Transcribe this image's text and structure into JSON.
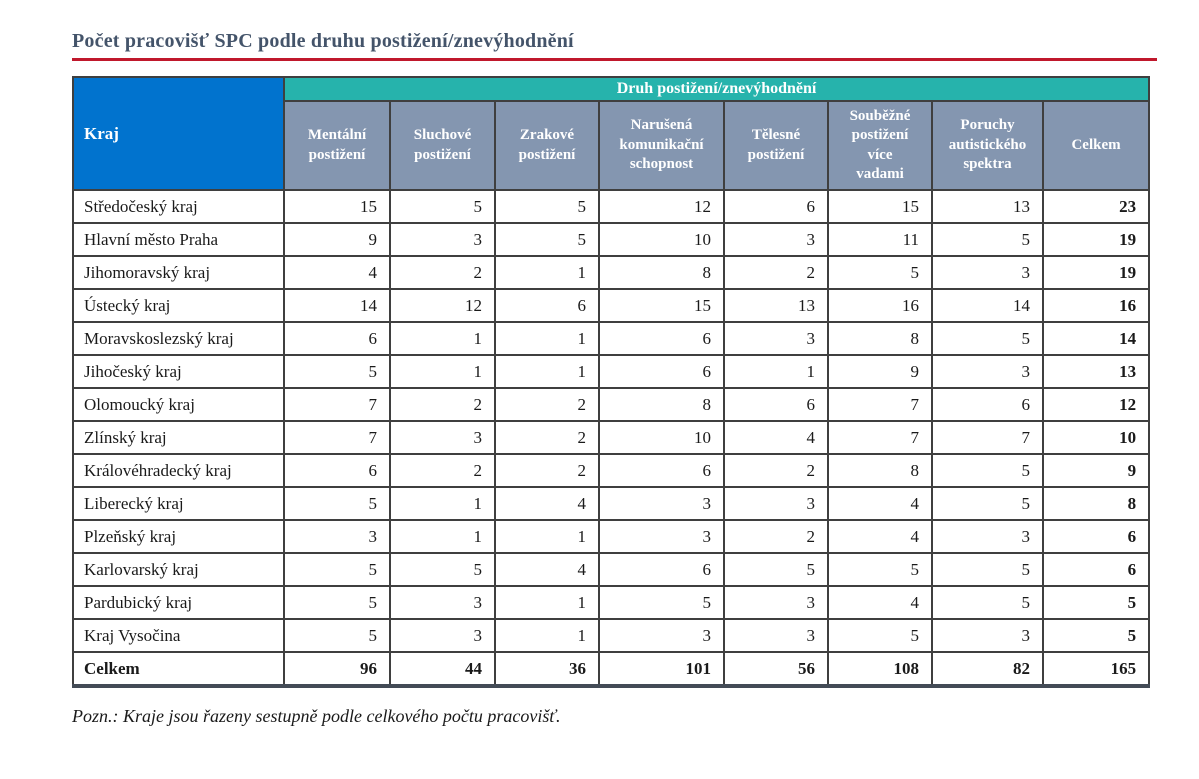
{
  "page": {
    "title": "Počet pracovišť SPC podle druhu postižení/znevýhodnění",
    "note": "Pozn.: Kraje jsou řazeny sestupně podle celkového počtu pracovišť."
  },
  "colors": {
    "kraj_header_blue": "#0173CE",
    "group_header_teal": "#26B3AC",
    "subheader_slate": "#8496B0",
    "title_text": "#44546A",
    "title_rule_red": "#C0182C",
    "table_border": "#3f3f3f"
  },
  "table": {
    "corner_header": "Kraj",
    "group_header": "Druh postižení/znevýhodnění",
    "columns": [
      "Mentální\npostižení",
      "Sluchové\npostižení",
      "Zrakové\npostižení",
      "Narušená\nkomunikační\nschopnost",
      "Tělesné\npostižení",
      "Souběžné\npostižení\nvíce\nvadami",
      "Poruchy\nautistického\nspektra",
      "Celkem"
    ],
    "rows": [
      {
        "kraj": "Středočeský kraj",
        "values": [
          15,
          5,
          5,
          12,
          6,
          15,
          13,
          23
        ]
      },
      {
        "kraj": "Hlavní město Praha",
        "values": [
          9,
          3,
          5,
          10,
          3,
          11,
          5,
          19
        ]
      },
      {
        "kraj": "Jihomoravský kraj",
        "values": [
          4,
          2,
          1,
          8,
          2,
          5,
          3,
          19
        ]
      },
      {
        "kraj": "Ústecký kraj",
        "values": [
          14,
          12,
          6,
          15,
          13,
          16,
          14,
          16
        ]
      },
      {
        "kraj": "Moravskoslezský kraj",
        "values": [
          6,
          1,
          1,
          6,
          3,
          8,
          5,
          14
        ]
      },
      {
        "kraj": "Jihočeský kraj",
        "values": [
          5,
          1,
          1,
          6,
          1,
          9,
          3,
          13
        ]
      },
      {
        "kraj": "Olomoucký kraj",
        "values": [
          7,
          2,
          2,
          8,
          6,
          7,
          6,
          12
        ]
      },
      {
        "kraj": "Zlínský kraj",
        "values": [
          7,
          3,
          2,
          10,
          4,
          7,
          7,
          10
        ]
      },
      {
        "kraj": "Královéhradecký kraj",
        "values": [
          6,
          2,
          2,
          6,
          2,
          8,
          5,
          9
        ]
      },
      {
        "kraj": "Liberecký kraj",
        "values": [
          5,
          1,
          4,
          3,
          3,
          4,
          5,
          8
        ]
      },
      {
        "kraj": "Plzeňský kraj",
        "values": [
          3,
          1,
          1,
          3,
          2,
          4,
          3,
          6
        ]
      },
      {
        "kraj": "Karlovarský kraj",
        "values": [
          5,
          5,
          4,
          6,
          5,
          5,
          5,
          6
        ]
      },
      {
        "kraj": "Pardubický kraj",
        "values": [
          5,
          3,
          1,
          5,
          3,
          4,
          5,
          5
        ]
      },
      {
        "kraj": "Kraj Vysočina",
        "values": [
          5,
          3,
          1,
          3,
          3,
          5,
          3,
          5
        ]
      }
    ],
    "total_row": {
      "kraj": "Celkem",
      "values": [
        96,
        44,
        36,
        101,
        56,
        108,
        82,
        165
      ]
    }
  }
}
